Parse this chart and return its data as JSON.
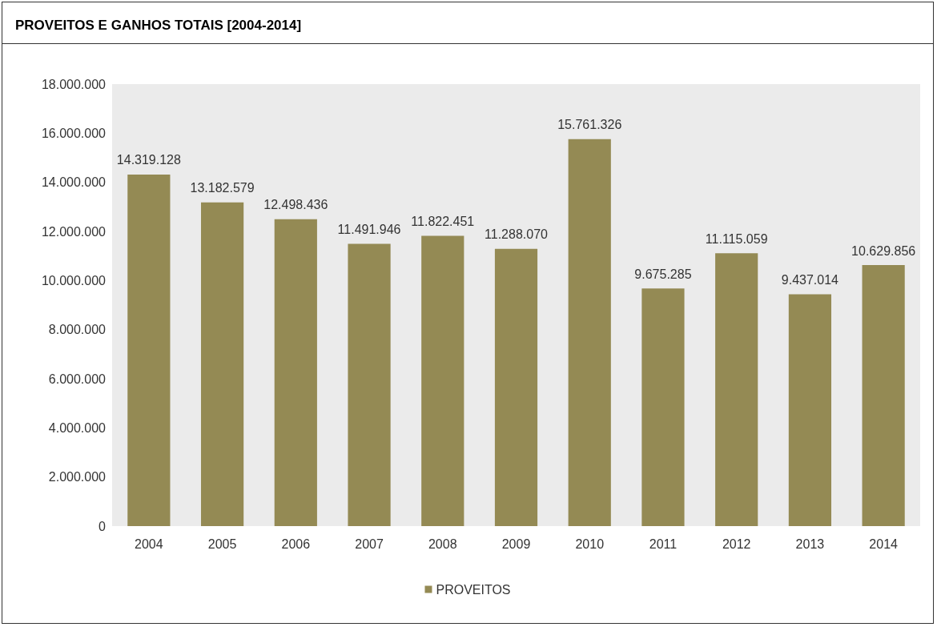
{
  "chart_data": {
    "type": "bar",
    "title": "PROVEITOS E GANHOS TOTAIS [2004-2014]",
    "categories": [
      "2004",
      "2005",
      "2006",
      "2007",
      "2008",
      "2009",
      "2010",
      "2011",
      "2012",
      "2013",
      "2014"
    ],
    "series": [
      {
        "name": "PROVEITOS",
        "color": "#948a54",
        "values": [
          14319128,
          13182579,
          12498436,
          11491946,
          11822451,
          11288070,
          15761326,
          9675285,
          11115059,
          9437014,
          10629856
        ],
        "value_labels": [
          "14.319.128",
          "13.182.579",
          "12.498.436",
          "11.491.946",
          "11.822.451",
          "11.288.070",
          "15.761.326",
          "9.675.285",
          "11.115.059",
          "9.437.014",
          "10.629.856"
        ]
      }
    ],
    "ylim": [
      0,
      18000000
    ],
    "yticks": [
      {
        "value": 0,
        "label": "0"
      },
      {
        "value": 2000000,
        "label": "2.000.000"
      },
      {
        "value": 4000000,
        "label": "4.000.000"
      },
      {
        "value": 6000000,
        "label": "6.000.000"
      },
      {
        "value": 8000000,
        "label": "8.000.000"
      },
      {
        "value": 10000000,
        "label": "10.000.000"
      },
      {
        "value": 12000000,
        "label": "12.000.000"
      },
      {
        "value": 14000000,
        "label": "14.000.000"
      },
      {
        "value": 16000000,
        "label": "16.000.000"
      },
      {
        "value": 18000000,
        "label": "18.000.000"
      }
    ],
    "grid": false,
    "legend": "bottom"
  }
}
